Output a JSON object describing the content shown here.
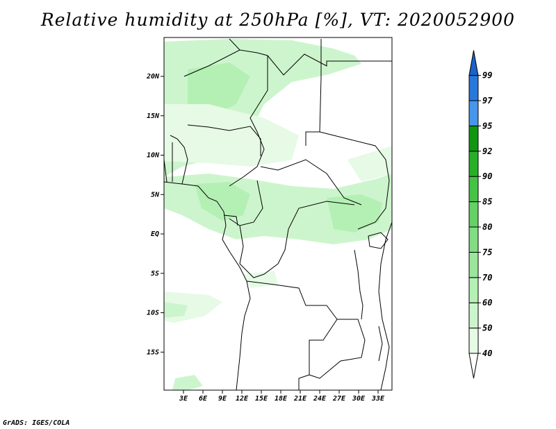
{
  "title": "Relative humidity at 250hPa [%], VT: 2020052900",
  "credit": "GrADS: IGES/COLA",
  "map": {
    "lat_labels": [
      "20N",
      "15N",
      "10N",
      "5N",
      "EQ",
      "5S",
      "10S",
      "15S"
    ],
    "lat_values": [
      20,
      15,
      10,
      5,
      0,
      -5,
      -10,
      -15
    ],
    "lon_labels": [
      "3E",
      "6E",
      "9E",
      "12E",
      "15E",
      "18E",
      "21E",
      "24E",
      "27E",
      "30E",
      "33E"
    ],
    "lon_values": [
      3,
      6,
      9,
      12,
      15,
      18,
      21,
      24,
      27,
      30,
      33
    ]
  },
  "colorbar": {
    "labels": [
      "40",
      "50",
      "60",
      "70",
      "75",
      "80",
      "85",
      "90",
      "92",
      "95",
      "97",
      "99"
    ],
    "colors": [
      "#e6fae6",
      "#cdf5cd",
      "#b4f0b4",
      "#9be69b",
      "#82dc82",
      "#64d264",
      "#46c346",
      "#28af28",
      "#129612",
      "#4696eb",
      "#2878dc",
      "#1964c8"
    ],
    "arrow_top_color": "#1964c8"
  }
}
